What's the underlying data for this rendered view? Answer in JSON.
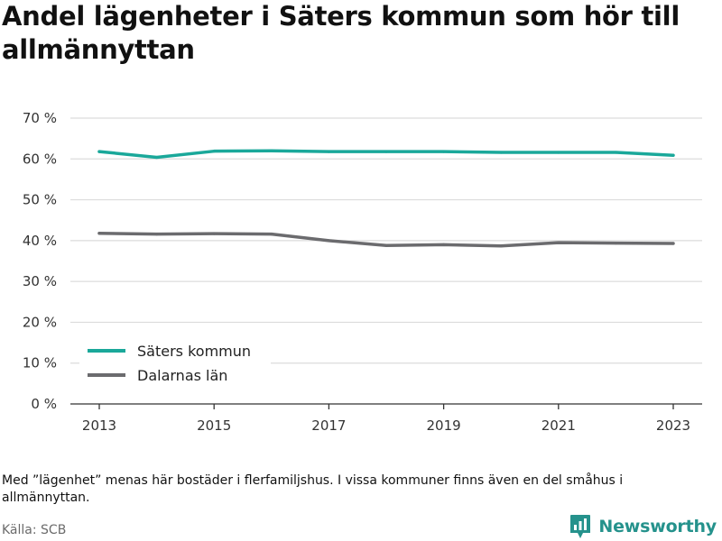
{
  "title": "Andel lägenheter i Säters kommun som hör till allmännyttan",
  "footnote": "Med ”lägenhet” menas här bostäder i flerfamiljshus. I vissa kommuner finns även en del småhus i allmännyttan.",
  "source": "Källa: SCB",
  "brand": {
    "name": "Newsworthy",
    "icon": "newsworthy-logo-icon",
    "color": "#25928c"
  },
  "chart_data": {
    "type": "line",
    "x": [
      2013,
      2014,
      2015,
      2016,
      2017,
      2018,
      2019,
      2020,
      2021,
      2022,
      2023
    ],
    "x_tick_labels": [
      "2013",
      "2015",
      "2017",
      "2019",
      "2021",
      "2023"
    ],
    "y_tick_labels": [
      "0 %",
      "10 %",
      "20 %",
      "30 %",
      "40 %",
      "50 %",
      "60 %",
      "70 %"
    ],
    "ylim": [
      0,
      70
    ],
    "grid": true,
    "legend_placement": "bottom-left",
    "series": [
      {
        "name": "Säters kommun",
        "color": "#1aa89a",
        "values": [
          61.8,
          60.4,
          61.9,
          62.0,
          61.8,
          61.8,
          61.8,
          61.6,
          61.6,
          61.6,
          60.9
        ]
      },
      {
        "name": "Dalarnas län",
        "color": "#6b6b6e",
        "values": [
          41.8,
          41.6,
          41.7,
          41.6,
          40.0,
          38.8,
          39.0,
          38.7,
          39.5,
          39.4,
          39.3
        ]
      }
    ]
  }
}
